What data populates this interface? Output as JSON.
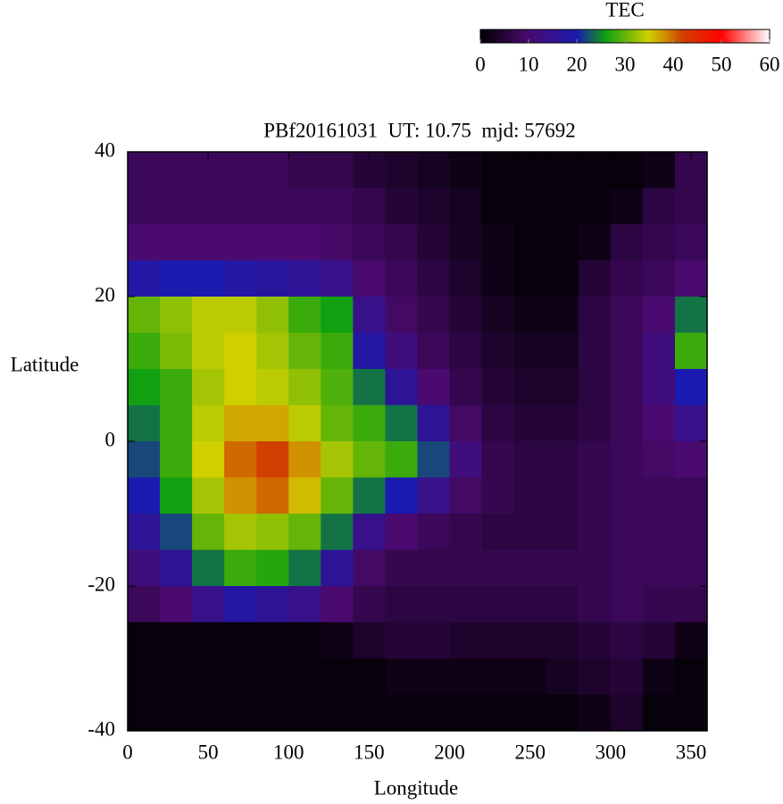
{
  "chart_data": {
    "type": "heatmap",
    "title": "PBf20161031  UT: 10.75  mjd: 57692",
    "x_label": "Longitude",
    "y_label": "Latitude",
    "colorbar_label": "TEC",
    "xlim": [
      0,
      360
    ],
    "xticks": [
      0,
      50,
      100,
      150,
      200,
      250,
      300,
      350
    ],
    "ylim": [
      -40,
      40
    ],
    "yticks": [
      -40,
      -20,
      0,
      20,
      40
    ],
    "zlim": [
      0,
      60
    ],
    "zticks": [
      0,
      10,
      20,
      30,
      40,
      50,
      60
    ],
    "colormap": [
      {
        "value": 0,
        "color": "#000000"
      },
      {
        "value": 10,
        "color": "#4a0a70"
      },
      {
        "value": 20,
        "color": "#1a1ab0"
      },
      {
        "value": 26,
        "color": "#10a010"
      },
      {
        "value": 35,
        "color": "#d0d000"
      },
      {
        "value": 42,
        "color": "#d04000"
      },
      {
        "value": 50,
        "color": "#ff0000"
      },
      {
        "value": 60,
        "color": "#ffffff"
      }
    ],
    "x": [
      10,
      30,
      50,
      70,
      90,
      110,
      130,
      150,
      170,
      190,
      210,
      230,
      250,
      270,
      290,
      310,
      330,
      350
    ],
    "y": [
      37.5,
      32.5,
      27.5,
      22.5,
      17.5,
      12.5,
      7.5,
      2.5,
      -2.5,
      -7.5,
      -12.5,
      -17.5,
      -22.5,
      -27.5,
      -32.5,
      -37.5
    ],
    "z": [
      [
        8,
        8,
        8,
        8,
        8,
        7,
        7,
        5,
        4,
        3,
        2,
        1,
        1,
        1,
        1,
        1,
        2,
        7
      ],
      [
        8,
        8,
        8,
        8,
        8,
        8,
        8,
        7,
        5,
        4,
        3,
        1,
        1,
        1,
        1,
        2,
        6,
        7
      ],
      [
        10,
        10,
        10,
        10,
        10,
        10,
        9,
        8,
        7,
        5,
        3,
        2,
        1,
        1,
        2,
        6,
        7,
        8
      ],
      [
        18,
        20,
        20,
        18,
        17,
        16,
        14,
        10,
        8,
        6,
        4,
        2,
        1,
        1,
        5,
        7,
        8,
        10
      ],
      [
        30,
        32,
        34,
        34,
        32,
        28,
        26,
        14,
        9,
        7,
        5,
        3,
        2,
        2,
        6,
        8,
        10,
        24
      ],
      [
        28,
        31,
        34,
        35,
        33,
        30,
        28,
        18,
        12,
        8,
        6,
        4,
        3,
        3,
        6,
        8,
        12,
        28
      ],
      [
        26,
        28,
        33,
        35,
        34,
        32,
        29,
        24,
        16,
        10,
        7,
        5,
        4,
        4,
        6,
        8,
        12,
        20
      ],
      [
        24,
        28,
        34,
        37,
        37,
        34,
        30,
        28,
        24,
        16,
        9,
        6,
        5,
        5,
        6,
        8,
        10,
        14
      ],
      [
        22,
        28,
        35,
        40,
        42,
        38,
        33,
        30,
        28,
        22,
        12,
        7,
        6,
        6,
        7,
        8,
        9,
        10
      ],
      [
        20,
        26,
        33,
        38,
        40,
        36,
        30,
        24,
        20,
        14,
        9,
        7,
        6,
        6,
        7,
        8,
        8,
        8
      ],
      [
        16,
        22,
        30,
        33,
        32,
        30,
        24,
        14,
        10,
        8,
        7,
        6,
        6,
        6,
        7,
        8,
        8,
        8
      ],
      [
        12,
        16,
        24,
        28,
        27,
        24,
        16,
        9,
        7,
        7,
        7,
        7,
        7,
        7,
        7,
        8,
        8,
        8
      ],
      [
        8,
        10,
        14,
        18,
        16,
        14,
        10,
        7,
        6,
        6,
        6,
        6,
        6,
        6,
        7,
        8,
        7,
        7
      ],
      [
        1,
        1,
        1,
        1,
        1,
        1,
        2,
        4,
        5,
        5,
        4,
        4,
        4,
        4,
        5,
        6,
        5,
        2
      ],
      [
        1,
        1,
        1,
        1,
        1,
        1,
        1,
        1,
        2,
        2,
        2,
        2,
        2,
        3,
        4,
        5,
        2,
        1
      ],
      [
        1,
        1,
        1,
        1,
        1,
        1,
        1,
        1,
        1,
        1,
        1,
        1,
        1,
        1,
        2,
        4,
        1,
        1
      ]
    ]
  }
}
